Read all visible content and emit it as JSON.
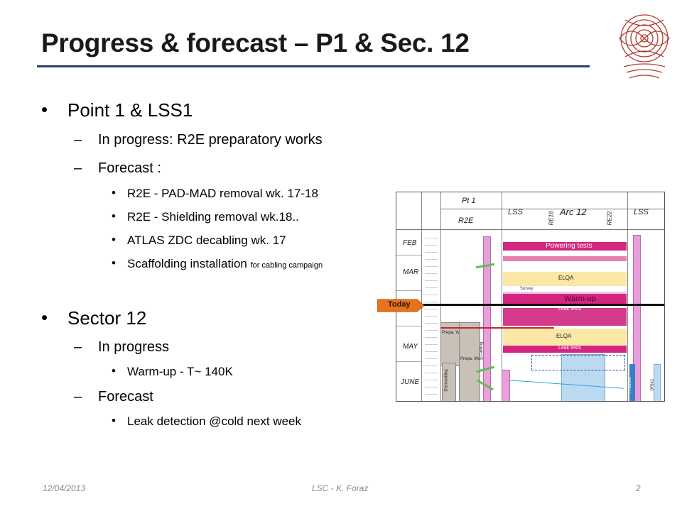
{
  "slide": {
    "title": "Progress & forecast – P1 & Sec. 12",
    "logo_icon": "cern-logo-icon",
    "sections": [
      {
        "heading": "Point 1 & LSS1",
        "items": [
          {
            "label": "In progress: R2E preparatory works"
          },
          {
            "label": "Forecast :",
            "subitems": [
              "R2E - PAD-MAD removal wk. 17-18",
              "R2E - Shielding removal wk.18..",
              "ATLAS ZDC decabling wk. 17",
              {
                "main": "Scaffolding installation",
                "note": "for cabling campaign"
              }
            ]
          }
        ]
      },
      {
        "heading": "Sector 12",
        "items": [
          {
            "label": "In progress",
            "subitems": [
              "Warm-up - T~ 140K"
            ]
          },
          {
            "label": "Forecast",
            "subitems": [
              "Leak detection @cold next week"
            ]
          }
        ]
      }
    ]
  },
  "schedule": {
    "headers": {
      "pt1": "Pt 1",
      "r2e": "R2E",
      "lss_left": "LSS",
      "arc": "Arc 12",
      "re18": "RE18",
      "re22": "RE22",
      "lss_right": "LSS"
    },
    "months": [
      "FEB",
      "MAR",
      "MAY",
      "JUNE"
    ],
    "bars": {
      "powering": "Powering tests",
      "elqa_top": "ELQA",
      "survey": "Survey",
      "warmup": "Warm-up",
      "leak_top": "Leak tests",
      "elqa_bottom": "ELQA",
      "leak_bottom": "Leak tests",
      "prepa_works_1": "Prepa. Works",
      "prepa_works_2": "Prepa. Works",
      "cabling": "Cabling",
      "dismantling": "Dismantling",
      "itdm": "IT DM100",
      "dfbx": "DFBXC"
    },
    "today_label": "Today",
    "colors": {
      "pink": "#e8a0dc",
      "magenta": "#d4257f",
      "yellow": "#fbe7a6",
      "blue": "#bcd9f2",
      "gray": "#c8c1b8"
    }
  },
  "footer": {
    "date": "12/04/2013",
    "center": "LSC - K. Foraz",
    "page": "2"
  }
}
